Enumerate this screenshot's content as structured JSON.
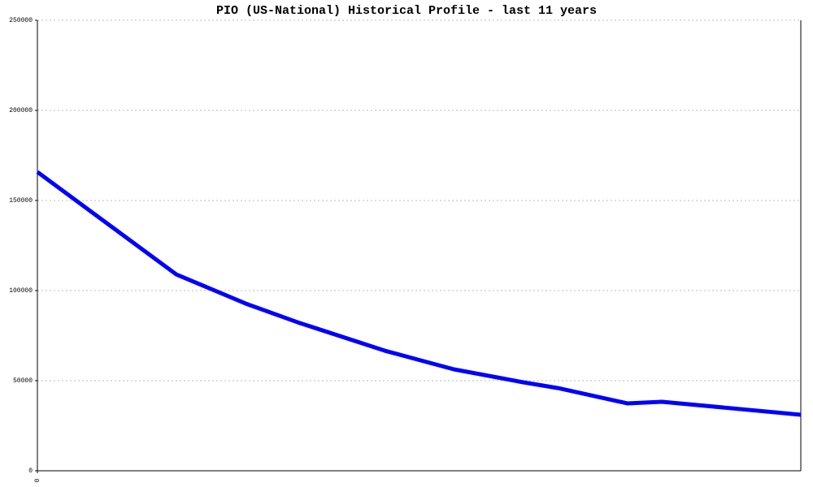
{
  "chart_data": {
    "type": "line",
    "title": "PIO (US-National) Historical Profile - last 11 years",
    "x": [
      0,
      2,
      3,
      3.75,
      5,
      6,
      7,
      7.5,
      8.5,
      9,
      11
    ],
    "series": [
      {
        "color": "#0000ff",
        "values": [
          165800,
          109000,
          92800,
          82400,
          66700,
          56300,
          49100,
          45900,
          37400,
          38300,
          31100
        ]
      }
    ],
    "xlim": [
      0,
      11
    ],
    "xticks": [
      0
    ],
    "ylim": [
      0,
      250000
    ],
    "yticks": [
      0,
      50000,
      100000,
      150000,
      200000,
      250000
    ],
    "grid": true
  }
}
